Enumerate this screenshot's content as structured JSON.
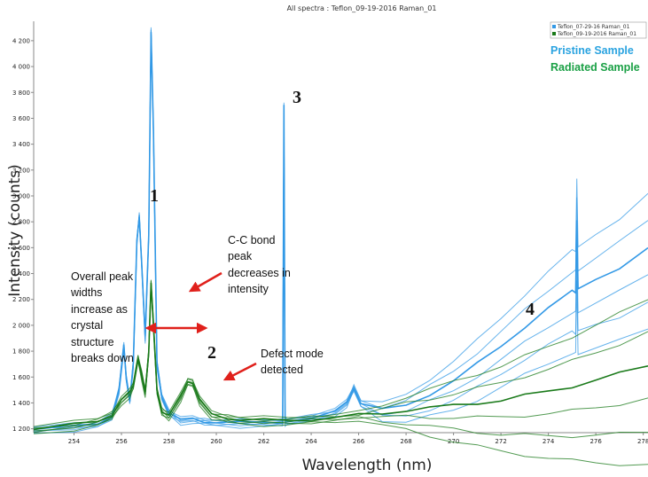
{
  "chart_data": {
    "type": "line",
    "title": "All spectra : Teflon_09-19-2016 Raman_01",
    "xlabel": "Wavelength (nm)",
    "ylabel": "Intensity (counts)",
    "xlim": [
      252.3,
      278.2
    ],
    "ylim": [
      1170,
      4350
    ],
    "x_ticks": [
      254,
      256,
      258,
      260,
      262,
      264,
      266,
      268,
      270,
      272,
      274,
      276,
      278
    ],
    "y_ticks": [
      "1 200",
      "1 400",
      "1 600",
      "1 800",
      "2 000",
      "2 200",
      "2 400",
      "2 600",
      "2 800",
      "3 000",
      "3 200",
      "3 400",
      "3 600",
      "3 800",
      "4 000",
      "4 200"
    ],
    "y_tick_values": [
      1200,
      1400,
      1600,
      1800,
      2000,
      2200,
      2400,
      2600,
      2800,
      3000,
      3200,
      3400,
      3600,
      3800,
      4000,
      4200
    ],
    "grid": false,
    "legend": {
      "placement": "top-right",
      "entries": [
        "Teflon_07-29-16 Raman_01",
        "Teflon_09-19-2016 Raman_01"
      ],
      "labels": [
        "Pristine Sample",
        "Radiated Sample"
      ]
    },
    "series": [
      {
        "name": "Teflon_07-29-16 Raman_01",
        "label": "Pristine Sample",
        "color": "#3399e6",
        "x": [
          252.3,
          254,
          255,
          255.6,
          255.9,
          256.1,
          256.2,
          256.35,
          256.5,
          256.65,
          256.75,
          256.85,
          257.0,
          257.15,
          257.25,
          257.35,
          257.5,
          257.7,
          258.0,
          258.5,
          259.0,
          259.5,
          260,
          261,
          262,
          262.8,
          262.85,
          262.9,
          263,
          264,
          265,
          265.5,
          265.8,
          266.1,
          267,
          268,
          269,
          270,
          271,
          272,
          273,
          274,
          275,
          275.15,
          275.2,
          275.25,
          276,
          277,
          278.2
        ],
        "y": [
          1195,
          1215,
          1240,
          1300,
          1500,
          1840,
          1600,
          1420,
          1700,
          2650,
          2850,
          2500,
          1900,
          2700,
          4280,
          3500,
          1700,
          1450,
          1330,
          1265,
          1275,
          1260,
          1250,
          1245,
          1250,
          1255,
          3700,
          1260,
          1260,
          1290,
          1330,
          1400,
          1520,
          1400,
          1345,
          1380,
          1470,
          1570,
          1700,
          1840,
          1990,
          2130,
          2260,
          2260,
          2820,
          2270,
          2350,
          2450,
          2600
        ]
      },
      {
        "name": "Teflon_09-19-2016 Raman_01",
        "label": "Radiated Sample",
        "color": "#1a7a1a",
        "x": [
          252.3,
          254,
          255,
          255.6,
          256.0,
          256.35,
          256.5,
          256.7,
          256.85,
          257.0,
          257.15,
          257.25,
          257.35,
          257.5,
          257.7,
          258.0,
          258.5,
          258.8,
          259.0,
          259.3,
          259.8,
          260.5,
          261,
          262,
          263,
          264,
          265,
          266,
          267,
          268,
          269,
          270,
          271,
          272,
          273,
          274,
          275,
          276,
          277,
          278.2
        ],
        "y": [
          1195,
          1230,
          1260,
          1310,
          1420,
          1480,
          1540,
          1750,
          1620,
          1480,
          1800,
          2330,
          2000,
          1500,
          1340,
          1300,
          1450,
          1570,
          1560,
          1420,
          1310,
          1285,
          1270,
          1265,
          1265,
          1275,
          1285,
          1305,
          1320,
          1345,
          1360,
          1380,
          1400,
          1420,
          1455,
          1490,
          1530,
          1575,
          1625,
          1690
        ]
      }
    ],
    "annotations": [
      {
        "label": "1"
      },
      {
        "label": "2"
      },
      {
        "label": "3"
      },
      {
        "label": "4"
      },
      {
        "text": [
          "Overall peak",
          "widths",
          "increase as",
          "crystal",
          "structure",
          "breaks down"
        ]
      },
      {
        "text": [
          "C-C bond",
          "peak",
          "decreases in",
          "intensity"
        ]
      },
      {
        "text": [
          "Defect mode",
          "detected"
        ]
      }
    ],
    "arrow_color": "#e0201b"
  }
}
